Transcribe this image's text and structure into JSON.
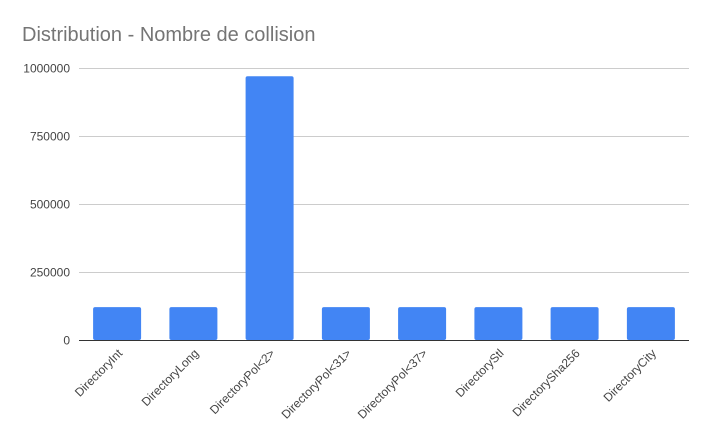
{
  "chart_data": {
    "type": "bar",
    "title": "Distribution - Nombre de collision",
    "xlabel": "",
    "ylabel": "",
    "categories": [
      "DirectoryInt",
      "DirectoryLong",
      "DirectoryPol<2>",
      "DirectoryPol<31>",
      "DirectoryPol<37>",
      "DirectoryStl",
      "DirectorySha256",
      "DirectoryCity"
    ],
    "values": [
      121000,
      121000,
      970000,
      121000,
      121000,
      121000,
      121000,
      121000
    ],
    "ylim": [
      0,
      1000000
    ],
    "yticks": [
      0,
      250000,
      500000,
      750000,
      1000000
    ],
    "ytick_labels": [
      "0",
      "250000",
      "500000",
      "750000",
      "1000000"
    ],
    "grid": true,
    "bar_color": "#4285f4",
    "legend": "none"
  }
}
